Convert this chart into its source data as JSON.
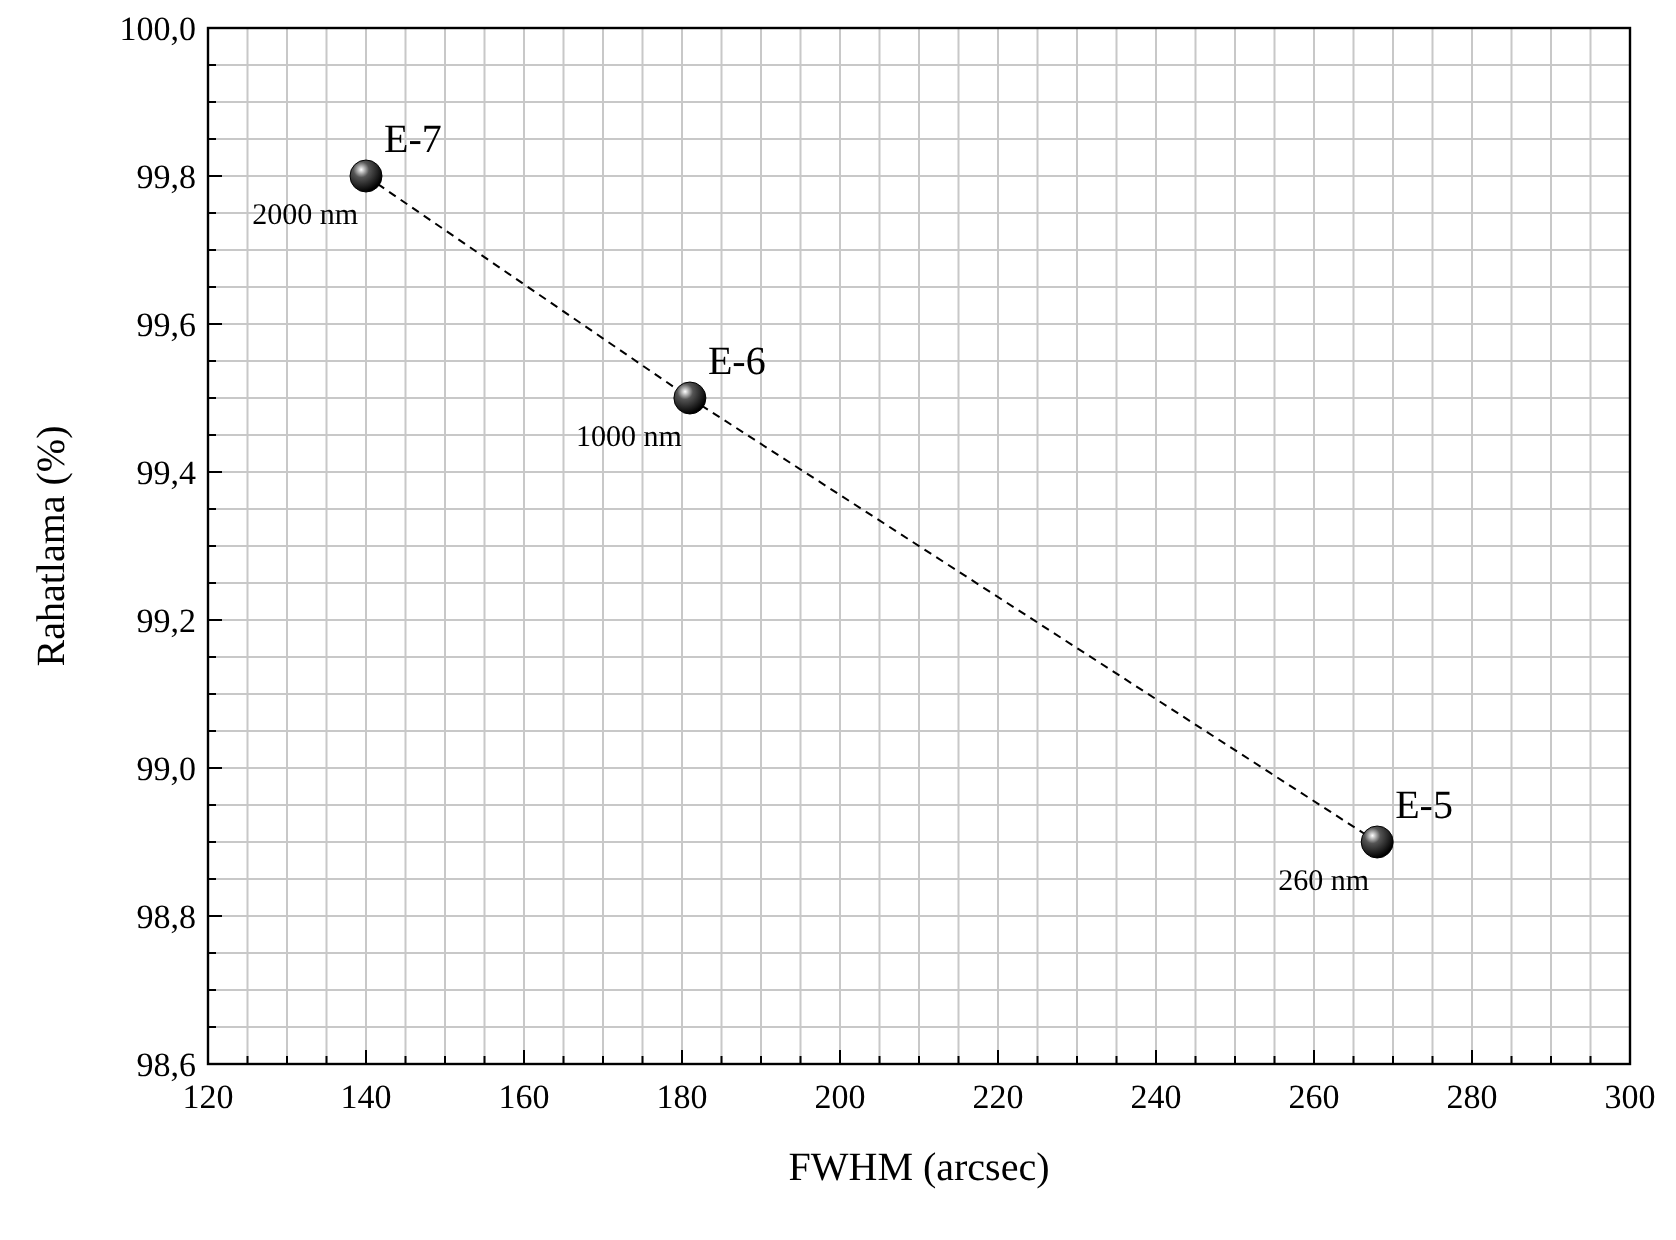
{
  "chart_data": {
    "type": "line",
    "xlabel": "FWHM (arcsec)",
    "ylabel": "Rahatlama (%)",
    "x": [
      140,
      181,
      268
    ],
    "series": [
      {
        "color": "#000000",
        "values": [
          99.8,
          99.5,
          98.9
        ]
      }
    ],
    "marker": "circle",
    "line_style": "dashed",
    "grid": true,
    "xlim": [
      120,
      300
    ],
    "xticks": [
      120,
      {
        "value": 125,
        "label": null
      },
      {
        "value": 130,
        "label": null
      },
      {
        "value": 135,
        "label": null
      },
      140,
      {
        "value": 145,
        "label": null
      },
      {
        "value": 150,
        "label": null
      },
      {
        "value": 155,
        "label": null
      },
      160,
      {
        "value": 165,
        "label": null
      },
      {
        "value": 170,
        "label": null
      },
      {
        "value": 175,
        "label": null
      },
      180,
      {
        "value": 185,
        "label": null
      },
      {
        "value": 190,
        "label": null
      },
      {
        "value": 195,
        "label": null
      },
      200,
      {
        "value": 205,
        "label": null
      },
      {
        "value": 210,
        "label": null
      },
      {
        "value": 215,
        "label": null
      },
      220,
      {
        "value": 225,
        "label": null
      },
      {
        "value": 230,
        "label": null
      },
      {
        "value": 235,
        "label": null
      },
      240,
      {
        "value": 245,
        "label": null
      },
      {
        "value": 250,
        "label": null
      },
      {
        "value": 255,
        "label": null
      },
      260,
      {
        "value": 265,
        "label": null
      },
      {
        "value": 270,
        "label": null
      },
      {
        "value": 275,
        "label": null
      },
      280,
      {
        "value": 285,
        "label": null
      },
      {
        "value": 290,
        "label": null
      },
      {
        "value": 295,
        "label": null
      },
      300
    ],
    "ylim": [
      98.6,
      100
    ],
    "yticks": [
      {
        "value": 98.6,
        "label": "98,6"
      },
      {
        "value": 98.65,
        "label": null
      },
      {
        "value": 98.7,
        "label": null
      },
      {
        "value": 98.75,
        "label": null
      },
      {
        "value": 98.8,
        "label": "98,8"
      },
      {
        "value": 98.85,
        "label": null
      },
      {
        "value": 98.9,
        "label": null
      },
      {
        "value": 98.95,
        "label": null
      },
      {
        "value": 99.0,
        "label": "99,0"
      },
      {
        "value": 99.05,
        "label": null
      },
      {
        "value": 99.1,
        "label": null
      },
      {
        "value": 99.15,
        "label": null
      },
      {
        "value": 99.2,
        "label": "99,2"
      },
      {
        "value": 99.25,
        "label": null
      },
      {
        "value": 99.3,
        "label": null
      },
      {
        "value": 99.35,
        "label": null
      },
      {
        "value": 99.4,
        "label": "99,4"
      },
      {
        "value": 99.45,
        "label": null
      },
      {
        "value": 99.5,
        "label": null
      },
      {
        "value": 99.55,
        "label": null
      },
      {
        "value": 99.6,
        "label": "99,6"
      },
      {
        "value": 99.65,
        "label": null
      },
      {
        "value": 99.7,
        "label": null
      },
      {
        "value": 99.75,
        "label": null
      },
      {
        "value": 99.8,
        "label": "99,8"
      },
      {
        "value": 99.85,
        "label": null
      },
      {
        "value": 99.9,
        "label": null
      },
      {
        "value": 99.95,
        "label": null
      },
      {
        "value": 100.0,
        "label": "100,0"
      }
    ],
    "annotations": [
      {
        "text": "E-7",
        "x": 140,
        "y": 99.8
      },
      {
        "text": "2000 nm",
        "x": 140,
        "y": 99.8
      },
      {
        "text": "E-6",
        "x": 181,
        "y": 99.5
      },
      {
        "text": "1000 nm",
        "x": 181,
        "y": 99.5
      },
      {
        "text": "E-5",
        "x": 268,
        "y": 98.9
      },
      {
        "text": "260 nm",
        "x": 268,
        "y": 98.9
      }
    ]
  }
}
